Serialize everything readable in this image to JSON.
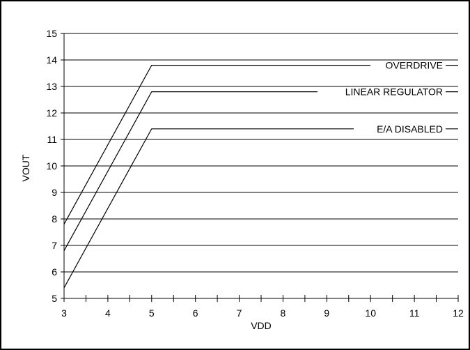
{
  "chart_data": {
    "type": "line",
    "xlabel": "VDD",
    "ylabel": "VOUT",
    "xlim": [
      3,
      12
    ],
    "ylim": [
      5,
      15
    ],
    "x_ticks": [
      3,
      4,
      5,
      6,
      7,
      8,
      9,
      10,
      11,
      12
    ],
    "y_ticks": [
      5,
      6,
      7,
      8,
      9,
      10,
      11,
      12,
      13,
      14,
      15
    ],
    "grid": "horizontal",
    "series": [
      {
        "name": "OVERDRIVE",
        "x": [
          3,
          5,
          12
        ],
        "y": [
          7.8,
          13.8,
          13.8
        ]
      },
      {
        "name": "LINEAR REGULATOR",
        "x": [
          3,
          5,
          12
        ],
        "y": [
          6.8,
          12.8,
          12.8
        ]
      },
      {
        "name": "E/A DISABLED",
        "x": [
          3,
          5,
          12
        ],
        "y": [
          5.4,
          11.4,
          11.4
        ]
      }
    ]
  }
}
